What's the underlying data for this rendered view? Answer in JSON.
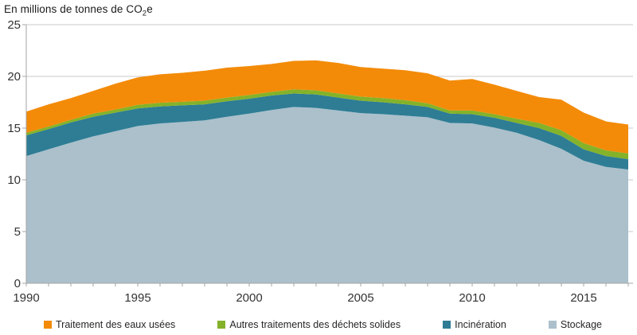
{
  "title": {
    "prefix": "En millions de tonnes de CO",
    "sub": "2",
    "suffix": "e"
  },
  "chart_data": {
    "type": "area",
    "stacked": true,
    "stack_order": "bottom-to-top",
    "title": "En millions de tonnes de CO2e",
    "xlabel": "",
    "ylabel": "",
    "xlim": [
      1990,
      2017
    ],
    "ylim": [
      0,
      25
    ],
    "xticks": [
      1990,
      1995,
      2000,
      2005,
      2010,
      2015
    ],
    "yticks": [
      0,
      5,
      10,
      15,
      20,
      25
    ],
    "grid": true,
    "legend_position": "bottom",
    "x": [
      1990,
      1991,
      1992,
      1993,
      1994,
      1995,
      1996,
      1997,
      1998,
      1999,
      2000,
      2001,
      2002,
      2003,
      2004,
      2005,
      2006,
      2007,
      2008,
      2009,
      2010,
      2011,
      2012,
      2013,
      2014,
      2015,
      2016,
      2017
    ],
    "series": [
      {
        "name": "Stockage",
        "color": "#ABC0CB",
        "values": [
          12.3,
          12.95,
          13.6,
          14.2,
          14.7,
          15.2,
          15.45,
          15.6,
          15.75,
          16.1,
          16.4,
          16.75,
          17.05,
          16.95,
          16.7,
          16.45,
          16.35,
          16.2,
          16.05,
          15.5,
          15.45,
          15.05,
          14.55,
          13.85,
          13.0,
          11.85,
          11.25,
          11.0
        ]
      },
      {
        "name": "Incinération",
        "color": "#2E7D95",
        "values": [
          2.0,
          1.95,
          1.95,
          1.9,
          1.8,
          1.7,
          1.65,
          1.6,
          1.55,
          1.5,
          1.45,
          1.4,
          1.3,
          1.3,
          1.25,
          1.2,
          1.15,
          1.1,
          1.0,
          0.9,
          0.9,
          0.95,
          0.95,
          1.15,
          1.25,
          1.1,
          1.05,
          1.0
        ]
      },
      {
        "name": "Autres traitements des déchets solides",
        "color": "#84B229",
        "values": [
          0.25,
          0.25,
          0.25,
          0.3,
          0.3,
          0.35,
          0.35,
          0.35,
          0.35,
          0.35,
          0.35,
          0.35,
          0.4,
          0.4,
          0.4,
          0.4,
          0.4,
          0.4,
          0.35,
          0.3,
          0.35,
          0.35,
          0.4,
          0.5,
          0.55,
          0.6,
          0.55,
          0.55
        ]
      },
      {
        "name": "Traitement des eaux usées",
        "color": "#F38B09",
        "values": [
          2.05,
          2.15,
          2.1,
          2.2,
          2.5,
          2.65,
          2.75,
          2.8,
          2.9,
          2.9,
          2.8,
          2.7,
          2.75,
          2.9,
          2.95,
          2.85,
          2.85,
          2.9,
          2.9,
          2.9,
          3.05,
          2.85,
          2.7,
          2.5,
          2.95,
          2.95,
          2.8,
          2.8
        ]
      }
    ],
    "legend": [
      {
        "label": "Traitement des eaux usées",
        "color": "#F38B09"
      },
      {
        "label": "Autres traitements des déchets solides",
        "color": "#84B229"
      },
      {
        "label": "Incinération",
        "color": "#2E7D95"
      },
      {
        "label": "Stockage",
        "color": "#ABC0CB"
      }
    ],
    "palette": {
      "grid_color": "#C9C9C9",
      "axis_color": "#A6A6A6",
      "tick_label_color": "#333333"
    }
  }
}
